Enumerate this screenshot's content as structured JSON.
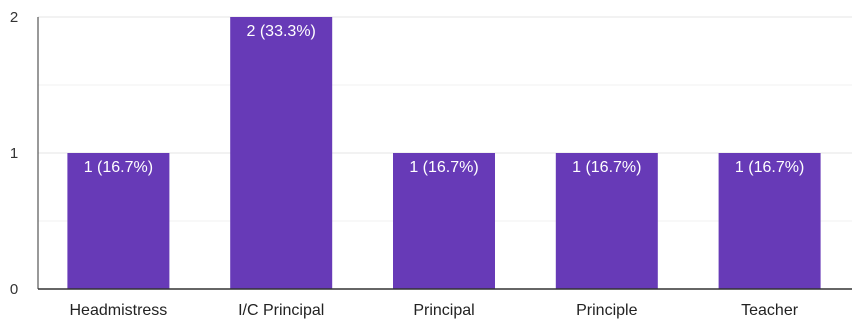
{
  "chart_data": {
    "type": "bar",
    "categories": [
      "Headmistress",
      "I/C Principal",
      "Principal",
      "Principle",
      "Teacher"
    ],
    "values": [
      1,
      2,
      1,
      1,
      1
    ],
    "data_labels": [
      "1 (16.7%)",
      "2 (33.3%)",
      "1 (16.7%)",
      "1 (16.7%)",
      "1 (16.7%)"
    ],
    "y_ticks": [
      0,
      1,
      2
    ],
    "ylim": [
      0,
      2
    ],
    "grid": true,
    "colors": {
      "bar": "#673ab7",
      "major_grid": "#e6e6e6",
      "minor_grid": "#f2f2f2",
      "axis": "#333333"
    }
  }
}
